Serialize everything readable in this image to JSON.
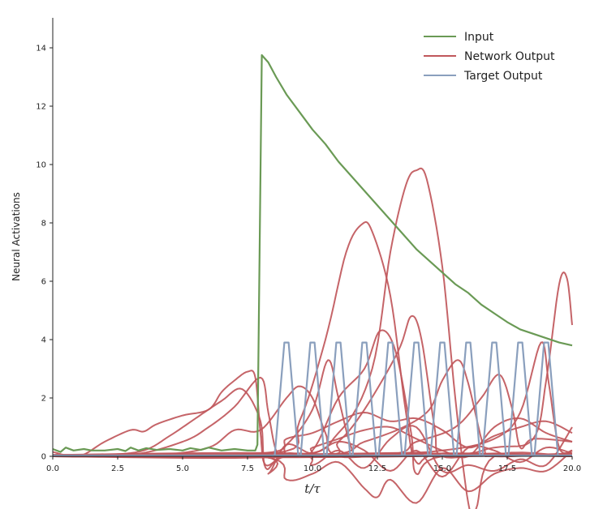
{
  "chart_data": {
    "type": "line",
    "title": "",
    "xlabel": "t/τ",
    "ylabel": "Neural Activations",
    "xlim": [
      0,
      20
    ],
    "ylim": [
      0,
      15
    ],
    "x_ticks": [
      "0.0",
      "2.5",
      "5.0",
      "7.5",
      "10.0",
      "12.5",
      "15.0",
      "17.5",
      "20.0"
    ],
    "y_ticks": [
      "0",
      "2",
      "4",
      "6",
      "8",
      "10",
      "12",
      "14"
    ],
    "grid": false,
    "legend_position": "top-right",
    "legend": [
      {
        "label": "Input",
        "color": "#6a9a55"
      },
      {
        "label": "Network Output",
        "color": "#c0575b"
      },
      {
        "label": "Target Output",
        "color": "#8a9fbd"
      }
    ],
    "colors": {
      "input": "#6a9a55",
      "network": "#c0575b",
      "target": "#8a9fbd"
    },
    "input_series": {
      "name": "Input",
      "points": [
        [
          0,
          0.25
        ],
        [
          0.3,
          0.15
        ],
        [
          0.5,
          0.3
        ],
        [
          0.8,
          0.2
        ],
        [
          1.2,
          0.25
        ],
        [
          1.5,
          0.2
        ],
        [
          2.0,
          0.2
        ],
        [
          2.5,
          0.25
        ],
        [
          2.8,
          0.18
        ],
        [
          3.0,
          0.3
        ],
        [
          3.3,
          0.2
        ],
        [
          3.6,
          0.28
        ],
        [
          4.0,
          0.22
        ],
        [
          4.5,
          0.25
        ],
        [
          5.0,
          0.2
        ],
        [
          5.3,
          0.28
        ],
        [
          5.7,
          0.22
        ],
        [
          6.0,
          0.3
        ],
        [
          6.5,
          0.2
        ],
        [
          7.0,
          0.25
        ],
        [
          7.5,
          0.2
        ],
        [
          7.8,
          0.2
        ],
        [
          7.88,
          0.4
        ],
        [
          8.05,
          13.75
        ],
        [
          8.3,
          13.5
        ],
        [
          8.6,
          13.0
        ],
        [
          9.0,
          12.4
        ],
        [
          9.5,
          11.8
        ],
        [
          10.0,
          11.2
        ],
        [
          10.5,
          10.7
        ],
        [
          11.0,
          10.1
        ],
        [
          11.5,
          9.6
        ],
        [
          12.0,
          9.1
        ],
        [
          12.5,
          8.6
        ],
        [
          13.0,
          8.1
        ],
        [
          13.5,
          7.6
        ],
        [
          14.0,
          7.1
        ],
        [
          14.5,
          6.7
        ],
        [
          15.0,
          6.3
        ],
        [
          15.5,
          5.9
        ],
        [
          16.0,
          5.6
        ],
        [
          16.5,
          5.2
        ],
        [
          17.0,
          4.9
        ],
        [
          17.5,
          4.6
        ],
        [
          18.0,
          4.35
        ],
        [
          18.5,
          4.2
        ],
        [
          19.0,
          4.05
        ],
        [
          19.5,
          3.9
        ],
        [
          20.0,
          3.8
        ]
      ]
    },
    "target_series": {
      "name": "Target Output",
      "peak_centers": [
        9.0,
        10.0,
        11.0,
        12.0,
        13.0,
        14.0,
        15.0,
        16.0,
        17.0,
        18.0,
        19.0
      ],
      "peak_height": 3.9,
      "half_width": 0.45
    },
    "network_series": {
      "name": "Network Output",
      "curves": [
        [
          [
            0,
            0.15
          ],
          [
            1,
            0.0
          ],
          [
            2,
            0.5
          ],
          [
            3,
            0.9
          ],
          [
            3.5,
            0.85
          ],
          [
            4,
            1.1
          ],
          [
            5,
            1.4
          ],
          [
            6,
            1.6
          ],
          [
            6.5,
            2.2
          ],
          [
            7,
            2.6
          ],
          [
            7.5,
            2.9
          ],
          [
            7.8,
            2.7
          ],
          [
            8.0,
            0.8
          ],
          [
            8.2,
            -0.3
          ],
          [
            9,
            0.1
          ],
          [
            10,
            0.0
          ],
          [
            11,
            0.05
          ],
          [
            12,
            0.0
          ],
          [
            13,
            0.05
          ],
          [
            15,
            0.0
          ],
          [
            17,
            0.05
          ],
          [
            20,
            0.0
          ]
        ],
        [
          [
            0,
            0.05
          ],
          [
            2,
            0.05
          ],
          [
            3.5,
            0.2
          ],
          [
            4.5,
            0.7
          ],
          [
            5.5,
            1.3
          ],
          [
            6.5,
            1.9
          ],
          [
            7.3,
            2.3
          ],
          [
            8.0,
            1.2
          ],
          [
            8.2,
            -0.4
          ],
          [
            9,
            0.0
          ],
          [
            12,
            0.05
          ],
          [
            16,
            0.0
          ],
          [
            20,
            0.1
          ]
        ],
        [
          [
            0,
            0.0
          ],
          [
            3,
            0.05
          ],
          [
            5,
            0.5
          ],
          [
            6,
            1.0
          ],
          [
            7,
            1.7
          ],
          [
            8,
            2.7
          ],
          [
            8.3,
            1.5
          ],
          [
            8.6,
            0.2
          ],
          [
            9,
            0.0
          ],
          [
            13,
            0.1
          ],
          [
            20,
            0.05
          ]
        ],
        [
          [
            0,
            0.0
          ],
          [
            4,
            0.05
          ],
          [
            6,
            0.3
          ],
          [
            7,
            0.9
          ],
          [
            8,
            0.9
          ],
          [
            9,
            2.0
          ],
          [
            9.5,
            2.4
          ],
          [
            10,
            2.0
          ],
          [
            10.5,
            0.8
          ],
          [
            11,
            0.0
          ],
          [
            14,
            0.1
          ],
          [
            20,
            0.0
          ]
        ],
        [
          [
            0,
            0.0
          ],
          [
            8,
            0.0
          ],
          [
            9,
            0.4
          ],
          [
            10,
            1.6
          ],
          [
            10.6,
            3.3
          ],
          [
            11,
            2.0
          ],
          [
            11.5,
            0.3
          ],
          [
            12,
            0.0
          ],
          [
            15,
            0.1
          ],
          [
            20,
            0.0
          ]
        ],
        [
          [
            0,
            0.0
          ],
          [
            8.5,
            0.1
          ],
          [
            9.5,
            1.2
          ],
          [
            10.5,
            4.0
          ],
          [
            11.3,
            7.0
          ],
          [
            11.9,
            7.95
          ],
          [
            12.3,
            7.7
          ],
          [
            13,
            5.5
          ],
          [
            13.6,
            1.5
          ],
          [
            14,
            -0.2
          ],
          [
            15,
            0.1
          ],
          [
            20,
            0.0
          ]
        ],
        [
          [
            0,
            0.0
          ],
          [
            9,
            0.1
          ],
          [
            10,
            0.2
          ],
          [
            11,
            2.0
          ],
          [
            12,
            3.0
          ],
          [
            12.6,
            4.3
          ],
          [
            13.2,
            3.6
          ],
          [
            13.8,
            0.8
          ],
          [
            14,
            -0.6
          ],
          [
            15,
            0.0
          ],
          [
            20,
            0.0
          ]
        ],
        [
          [
            0,
            0.0
          ],
          [
            9,
            0.0
          ],
          [
            11,
            0.8
          ],
          [
            12.3,
            3.0
          ],
          [
            13,
            7.0
          ],
          [
            13.6,
            9.3
          ],
          [
            14,
            9.8
          ],
          [
            14.4,
            9.5
          ],
          [
            15,
            6.5
          ],
          [
            15.5,
            2.0
          ],
          [
            16,
            -1.6
          ],
          [
            16.3,
            -1.8
          ],
          [
            17,
            0.0
          ],
          [
            20,
            0.0
          ]
        ],
        [
          [
            0,
            0.0
          ],
          [
            10,
            0.0
          ],
          [
            11,
            0.5
          ],
          [
            12,
            1.6
          ],
          [
            13.3,
            3.6
          ],
          [
            13.8,
            4.8
          ],
          [
            14.2,
            4.0
          ],
          [
            14.7,
            1.0
          ],
          [
            15,
            0.0
          ],
          [
            17,
            0.1
          ],
          [
            20,
            0.0
          ]
        ],
        [
          [
            0,
            0.0
          ],
          [
            10,
            0.0
          ],
          [
            12,
            0.5
          ],
          [
            13.5,
            1.0
          ],
          [
            14.5,
            1.6
          ],
          [
            15,
            2.6
          ],
          [
            15.6,
            3.3
          ],
          [
            16,
            2.5
          ],
          [
            16.6,
            0.3
          ],
          [
            17,
            0.0
          ],
          [
            20,
            0.1
          ]
        ],
        [
          [
            0,
            0.0
          ],
          [
            12,
            0.0
          ],
          [
            14,
            0.5
          ],
          [
            15.5,
            1.0
          ],
          [
            16.5,
            2.0
          ],
          [
            17.2,
            2.8
          ],
          [
            17.7,
            1.6
          ],
          [
            18,
            0.3
          ],
          [
            18.5,
            0.6
          ],
          [
            20,
            0.5
          ]
        ],
        [
          [
            0,
            0.0
          ],
          [
            12,
            0.1
          ],
          [
            15,
            0.2
          ],
          [
            17,
            0.6
          ],
          [
            18,
            1.5
          ],
          [
            18.8,
            3.9
          ],
          [
            19.1,
            2.5
          ],
          [
            19.5,
            0.3
          ],
          [
            20,
            0.2
          ]
        ],
        [
          [
            0,
            0.0
          ],
          [
            14,
            0.0
          ],
          [
            17,
            0.3
          ],
          [
            18.5,
            0.6
          ],
          [
            19.0,
            2.6
          ],
          [
            19.5,
            5.9
          ],
          [
            19.8,
            6.1
          ],
          [
            20,
            4.5
          ]
        ],
        [
          [
            0,
            0.05
          ],
          [
            8,
            0.0
          ],
          [
            8.3,
            -0.6
          ],
          [
            9,
            0.4
          ],
          [
            10,
            0.1
          ],
          [
            11,
            0.5
          ],
          [
            12,
            0.2
          ],
          [
            13,
            -0.5
          ],
          [
            14,
            0.2
          ],
          [
            15,
            -0.7
          ],
          [
            16,
            0.3
          ],
          [
            17,
            0.2
          ],
          [
            18,
            -0.2
          ],
          [
            19,
            0.3
          ],
          [
            20,
            0.1
          ]
        ],
        [
          [
            0,
            0.05
          ],
          [
            8,
            0.0
          ],
          [
            9,
            -0.8
          ],
          [
            10,
            -0.6
          ],
          [
            11,
            -0.2
          ],
          [
            12,
            -1.1
          ],
          [
            12.5,
            -1.4
          ],
          [
            13,
            -0.8
          ],
          [
            14,
            -1.6
          ],
          [
            15,
            -0.4
          ],
          [
            16,
            -1.2
          ],
          [
            17,
            -0.6
          ],
          [
            18,
            -0.4
          ],
          [
            19,
            -0.5
          ],
          [
            20,
            0.2
          ]
        ],
        [
          [
            0,
            0.05
          ],
          [
            8,
            0.1
          ],
          [
            9,
            0.6
          ],
          [
            10,
            0.8
          ],
          [
            11,
            1.2
          ],
          [
            12,
            1.5
          ],
          [
            13,
            1.2
          ],
          [
            14,
            1.3
          ],
          [
            15,
            0.9
          ],
          [
            16,
            0.3
          ],
          [
            17,
            0.7
          ],
          [
            18,
            1.0
          ],
          [
            19,
            1.2
          ],
          [
            20,
            0.8
          ]
        ],
        [
          [
            0,
            0.05
          ],
          [
            9,
            0.0
          ],
          [
            10,
            0.3
          ],
          [
            11,
            0.6
          ],
          [
            12,
            0.9
          ],
          [
            13,
            1.0
          ],
          [
            14,
            0.6
          ],
          [
            15,
            0.2
          ],
          [
            16,
            0.0
          ],
          [
            17,
            1.0
          ],
          [
            18,
            1.3
          ],
          [
            19,
            0.8
          ],
          [
            20,
            0.5
          ]
        ],
        [
          [
            0,
            0.05
          ],
          [
            9,
            0.1
          ],
          [
            10,
            -0.3
          ],
          [
            11,
            0.2
          ],
          [
            12,
            -0.4
          ],
          [
            13,
            0.6
          ],
          [
            14,
            1.0
          ],
          [
            15,
            -0.5
          ],
          [
            16,
            -0.3
          ],
          [
            17,
            -0.5
          ],
          [
            18,
            -0.1
          ],
          [
            19,
            -0.3
          ],
          [
            20,
            1.0
          ]
        ]
      ]
    }
  }
}
